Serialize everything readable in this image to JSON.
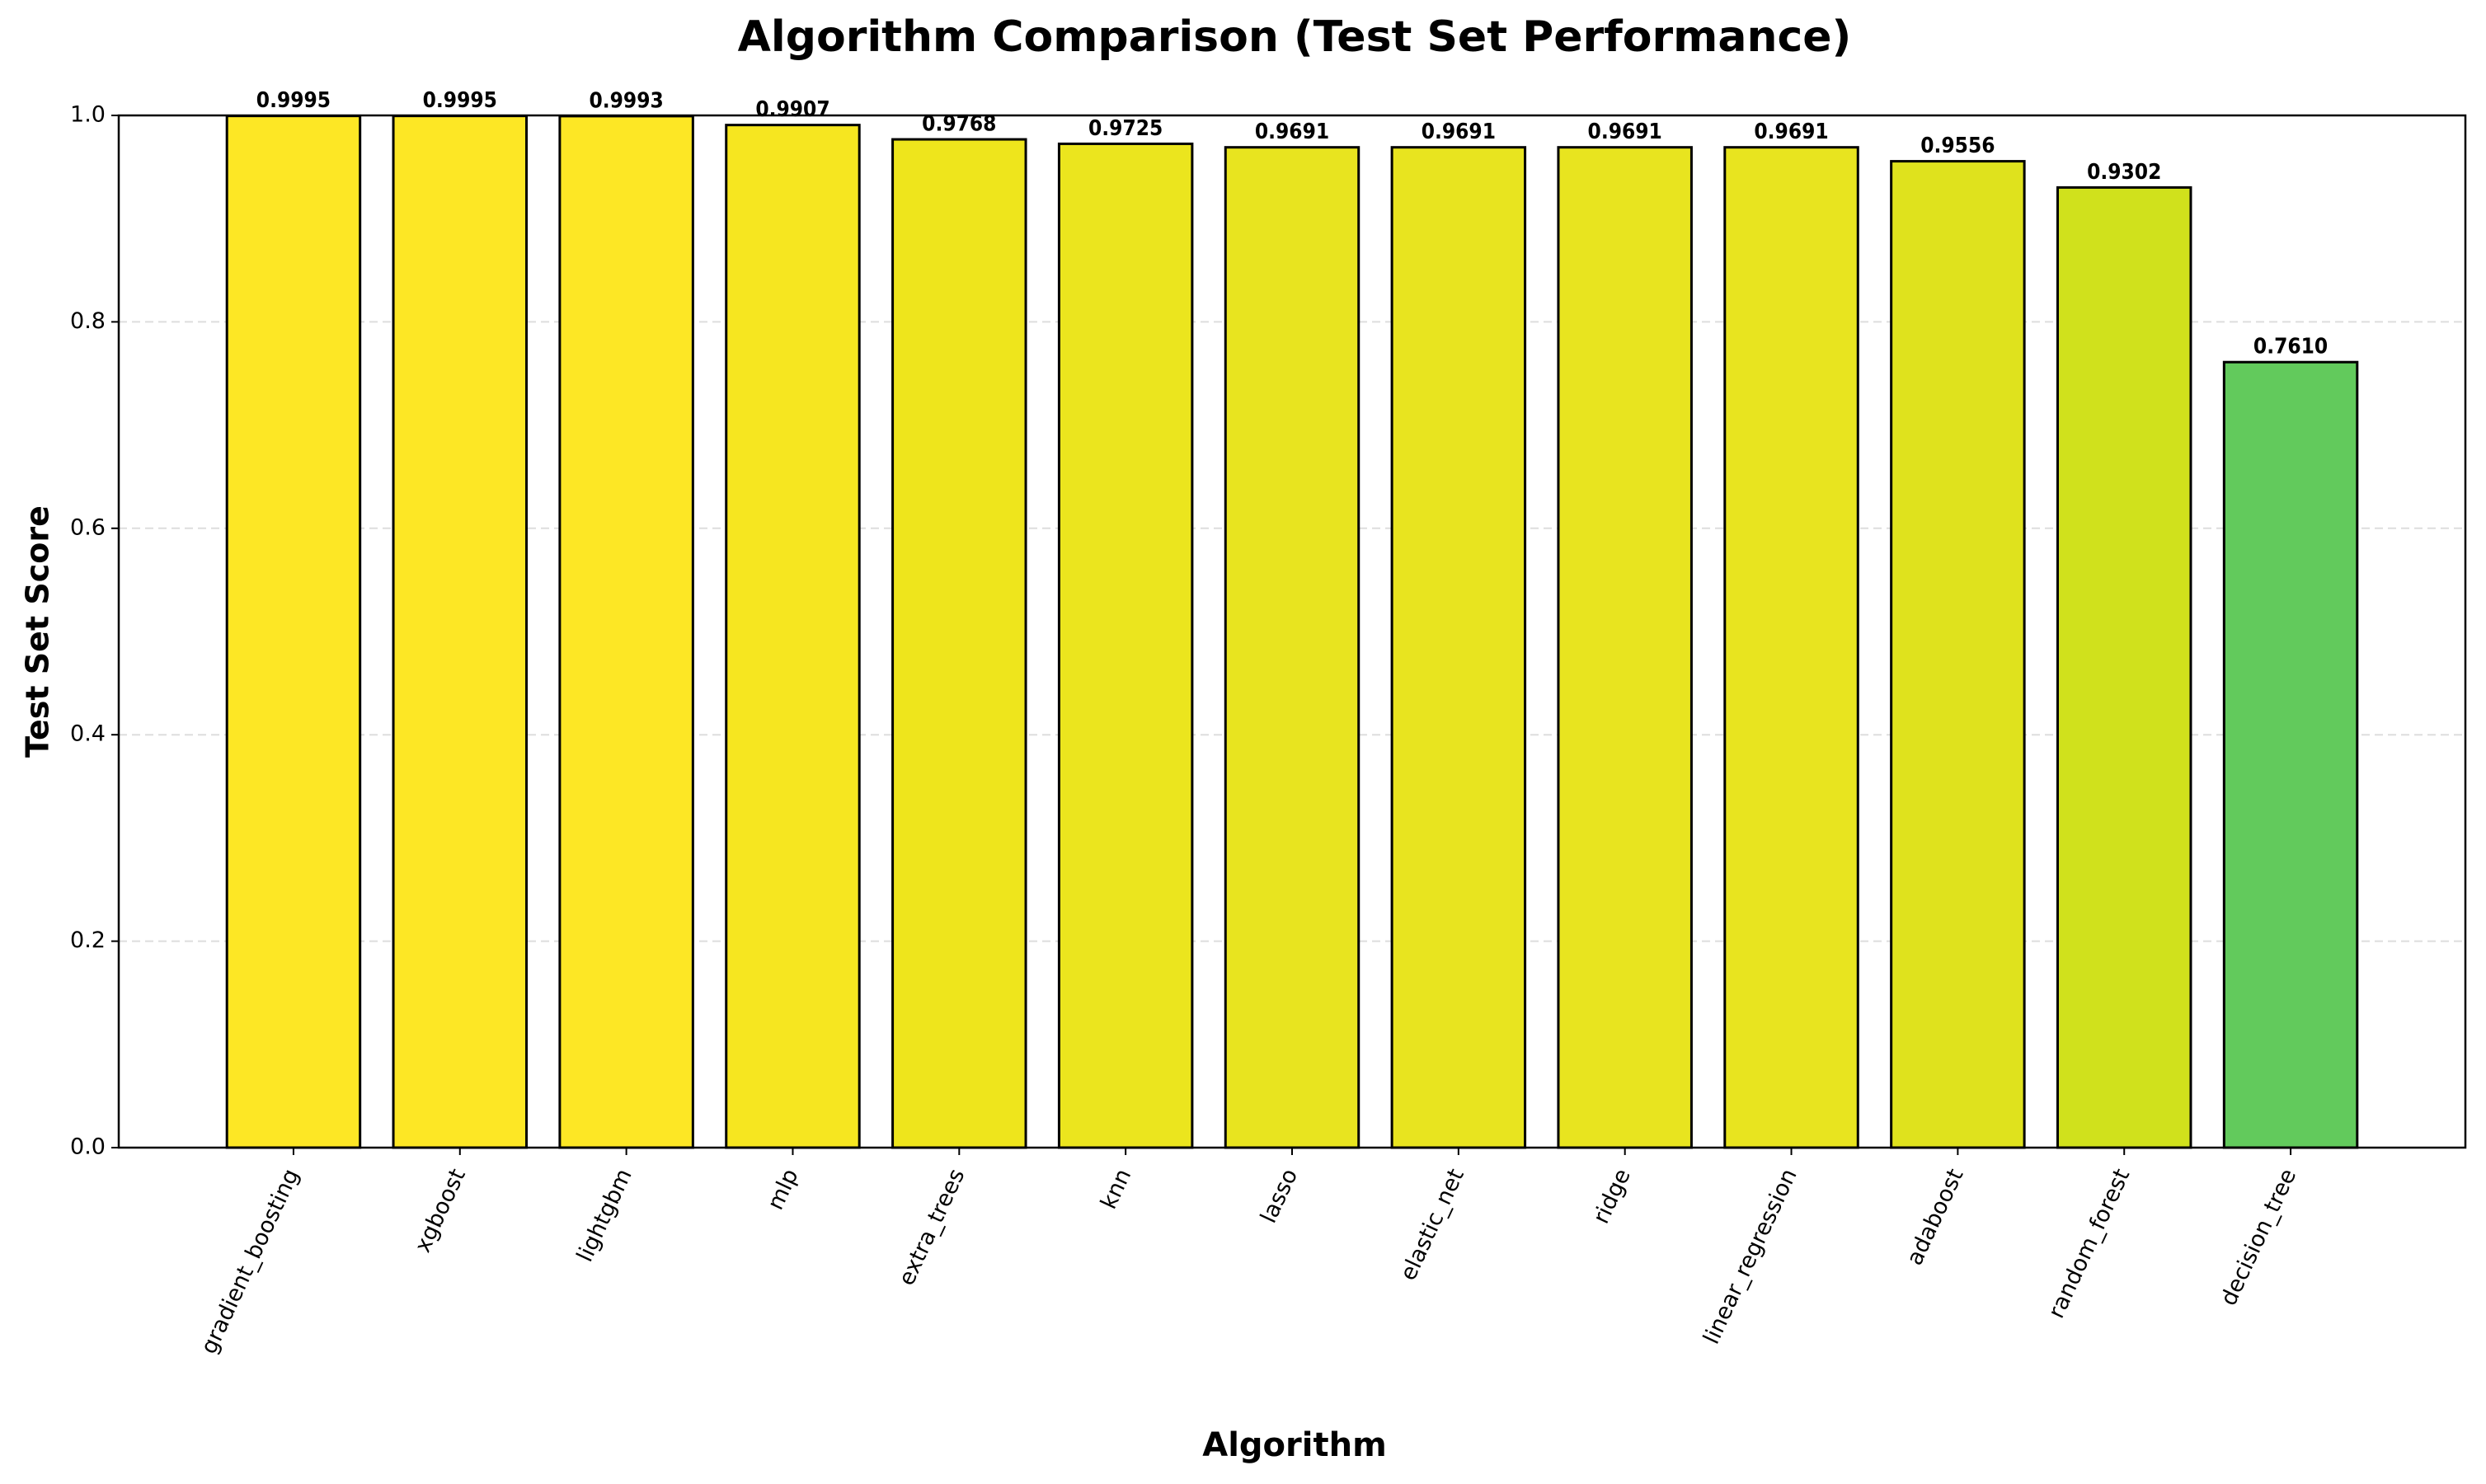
{
  "chart_data": {
    "type": "bar",
    "title": "Algorithm Comparison (Test Set Performance)",
    "x_label": "Algorithm",
    "y_label": "Test Set Score",
    "categories": [
      "gradient_boosting",
      "xgboost",
      "lightgbm",
      "mlp",
      "extra_trees",
      "knn",
      "lasso",
      "elastic_net",
      "ridge",
      "linear_regression",
      "adaboost",
      "random_forest",
      "decision_tree"
    ],
    "values": [
      0.9995,
      0.9995,
      0.9993,
      0.9907,
      0.9768,
      0.9725,
      0.9691,
      0.9691,
      0.9691,
      0.9691,
      0.9556,
      0.9302,
      0.761
    ],
    "value_labels": [
      "0.9995",
      "0.9995",
      "0.9993",
      "0.9907",
      "0.9768",
      "0.9725",
      "0.9691",
      "0.9691",
      "0.9691",
      "0.9691",
      "0.9556",
      "0.9302",
      "0.7610"
    ],
    "colors": [
      "#fde725",
      "#fde725",
      "#fde725",
      "#f6e620",
      "#eee51c",
      "#ebe51e",
      "#e8e41f",
      "#e8e41f",
      "#e8e41f",
      "#e8e41f",
      "#dfe21d",
      "#d0e11c",
      "#62ca5c"
    ],
    "edge_color": "#000000",
    "ylim": [
      0,
      1
    ],
    "yticks": [
      {
        "value": 0,
        "label": "0.0"
      },
      0.2,
      0.4,
      0.6,
      0.8,
      {
        "value": 1,
        "label": "1.0"
      }
    ],
    "grid": true
  }
}
